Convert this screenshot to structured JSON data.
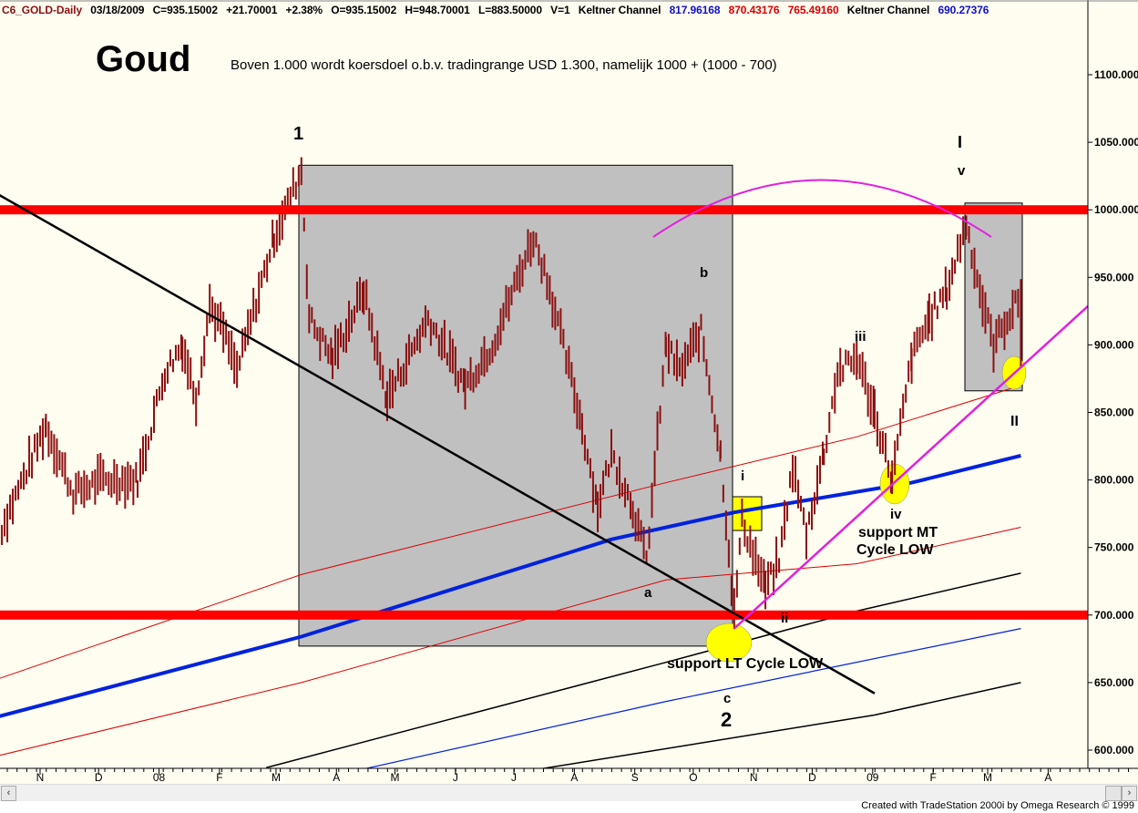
{
  "header": {
    "symbol": "C6_GOLD-Daily",
    "date": "03/18/2009",
    "close": "C=935.15002",
    "change": "+21.70001",
    "change_pct": "+2.38%",
    "open": "O=935.15002",
    "high": "H=948.70001",
    "low": "L=883.50000",
    "volume": "V=1",
    "indicator1": "Keltner Channel",
    "k1_mid": "817.96168",
    "k1_upper": "870.43176",
    "k1_lower": "765.49160",
    "indicator2": "Keltner Channel",
    "k2_value": "690.27376"
  },
  "footer": "Created with TradeStation 2000i by Omega Research © 1999",
  "colors": {
    "background": "#FFFCF0",
    "bars": "#8B1010",
    "level_lines": "#FF0000",
    "keltner_mid": "#0022DD",
    "magenta": "#E020E0",
    "highlight": "#FFFF00",
    "box": "#C0C0C0"
  },
  "chart_data": {
    "type": "bar",
    "title": "Goud",
    "subtitle": "Boven 1.000 wordt koersdoel o.b.v. tradingrange USD 1.300, namelijk 1000 + (1000 - 700)",
    "ylim": [
      590,
      1115
    ],
    "y_ticks": [
      "1100.000",
      "1050.000",
      "1000.000",
      "950.000",
      "900.000",
      "850.000",
      "800.000",
      "750.000",
      "700.000",
      "650.000",
      "600.000"
    ],
    "x_ticks": [
      {
        "label": "N",
        "date": "2007-11-01"
      },
      {
        "label": "D",
        "date": "2007-12-01"
      },
      {
        "label": "08",
        "date": "2008-01-01"
      },
      {
        "label": "F",
        "date": "2008-02-01"
      },
      {
        "label": "M",
        "date": "2008-03-01"
      },
      {
        "label": "A",
        "date": "2008-04-01"
      },
      {
        "label": "M",
        "date": "2008-05-01"
      },
      {
        "label": "J",
        "date": "2008-06-01"
      },
      {
        "label": "J",
        "date": "2008-07-01"
      },
      {
        "label": "A",
        "date": "2008-08-01"
      },
      {
        "label": "S",
        "date": "2008-09-01"
      },
      {
        "label": "O",
        "date": "2008-10-01"
      },
      {
        "label": "N",
        "date": "2008-11-01"
      },
      {
        "label": "D",
        "date": "2008-12-01"
      },
      {
        "label": "09",
        "date": "2009-01-01"
      },
      {
        "label": "F",
        "date": "2009-02-01"
      },
      {
        "label": "M",
        "date": "2009-03-01"
      },
      {
        "label": "A",
        "date": "2009-04-01"
      }
    ],
    "price_pivots": [
      [
        "2007-10-11",
        760
      ],
      [
        "2007-11-04",
        840
      ],
      [
        "2007-11-18",
        790
      ],
      [
        "2007-12-02",
        800
      ],
      [
        "2007-12-21",
        800
      ],
      [
        "2008-01-04",
        880
      ],
      [
        "2008-01-13",
        900
      ],
      [
        "2008-01-20",
        860
      ],
      [
        "2008-01-27",
        930
      ],
      [
        "2008-02-03",
        910
      ],
      [
        "2008-02-10",
        880
      ],
      [
        "2008-02-29",
        980
      ],
      [
        "2008-03-14",
        1030
      ],
      [
        "2008-03-18",
        920
      ],
      [
        "2008-03-30",
        890
      ],
      [
        "2008-04-15",
        940
      ],
      [
        "2008-04-27",
        860
      ],
      [
        "2008-05-18",
        920
      ],
      [
        "2008-06-06",
        870
      ],
      [
        "2008-06-20",
        900
      ],
      [
        "2008-07-11",
        980
      ],
      [
        "2008-07-18",
        950
      ],
      [
        "2008-08-05",
        840
      ],
      [
        "2008-08-13",
        780
      ],
      [
        "2008-08-20",
        820
      ],
      [
        "2008-08-31",
        780
      ],
      [
        "2008-09-07",
        740
      ],
      [
        "2008-09-17",
        900
      ],
      [
        "2008-09-24",
        880
      ],
      [
        "2008-10-05",
        910
      ],
      [
        "2008-10-15",
        820
      ],
      [
        "2008-10-22",
        700
      ],
      [
        "2008-10-26",
        770
      ],
      [
        "2008-11-07",
        720
      ],
      [
        "2008-11-14",
        740
      ],
      [
        "2008-11-21",
        810
      ],
      [
        "2008-11-28",
        760
      ],
      [
        "2008-12-07",
        820
      ],
      [
        "2008-12-14",
        880
      ],
      [
        "2008-12-24",
        890
      ],
      [
        "2009-01-02",
        850
      ],
      [
        "2009-01-11",
        800
      ],
      [
        "2009-01-21",
        890
      ],
      [
        "2009-01-30",
        920
      ],
      [
        "2009-02-08",
        940
      ],
      [
        "2009-02-18",
        990
      ],
      [
        "2009-02-25",
        940
      ],
      [
        "2009-03-04",
        900
      ],
      [
        "2009-03-11",
        920
      ],
      [
        "2009-03-18",
        935
      ]
    ],
    "keltner_lines": [
      {
        "name": "keltner-mid",
        "color": "#0022DD",
        "width": 4,
        "points": [
          [
            "2007-10-11",
            625
          ],
          [
            "2008-03-14",
            684
          ],
          [
            "2008-08-20",
            756
          ],
          [
            "2008-10-22",
            776
          ],
          [
            "2009-01-21",
            798
          ],
          [
            "2009-03-18",
            818
          ]
        ]
      },
      {
        "name": "keltner-upper",
        "color": "#DD0000",
        "width": 1,
        "points": [
          [
            "2007-10-11",
            653
          ],
          [
            "2008-03-14",
            730
          ],
          [
            "2008-09-17",
            798
          ],
          [
            "2008-12-24",
            832
          ],
          [
            "2009-03-18",
            870
          ]
        ]
      },
      {
        "name": "keltner-lower",
        "color": "#DD0000",
        "width": 1,
        "points": [
          [
            "2007-10-11",
            596
          ],
          [
            "2008-03-14",
            650
          ],
          [
            "2008-09-17",
            726
          ],
          [
            "2008-12-24",
            738
          ],
          [
            "2009-03-18",
            765
          ]
        ]
      },
      {
        "name": "keltner2-lower",
        "color": "#0022DD",
        "width": 1.2,
        "points": [
          [
            "2008-04-15",
            586
          ],
          [
            "2008-09-17",
            636
          ],
          [
            "2009-03-18",
            690
          ]
        ]
      },
      {
        "name": "black-band-upper",
        "color": "#000000",
        "width": 1.5,
        "points": [
          [
            "2008-02-25",
            587
          ],
          [
            "2008-09-17",
            665
          ],
          [
            "2008-12-24",
            703
          ],
          [
            "2009-03-18",
            731
          ]
        ]
      },
      {
        "name": "black-band-lower",
        "color": "#000000",
        "width": 1.5,
        "points": [
          [
            "2008-07-10",
            585
          ],
          [
            "2009-01-02",
            626
          ],
          [
            "2009-03-18",
            650
          ]
        ]
      }
    ],
    "levels": [
      1000,
      700
    ],
    "trendlines": [
      {
        "name": "down-trendline",
        "color": "#000000",
        "from": [
          "2007-10-11",
          1011
        ],
        "to": [
          "2009-01-02",
          642
        ]
      },
      {
        "name": "up-trendline",
        "color": "#E020E0",
        "from": [
          "2008-10-22",
          690
        ],
        "to": [
          "2009-04-30",
          940
        ]
      }
    ],
    "annotations": {
      "wave_1": "1",
      "wave_2": "2",
      "wave_a": "a",
      "wave_b": "b",
      "wave_c": "c",
      "wave_i": "i",
      "wave_ii": "ii",
      "wave_iii": "iii",
      "wave_iv": "iv",
      "wave_v": "v",
      "wave_I": "I",
      "wave_II": "II",
      "support_lt": "support LT Cycle LOW",
      "support_mt_1": "support MT",
      "support_mt_2": "Cycle LOW"
    }
  }
}
